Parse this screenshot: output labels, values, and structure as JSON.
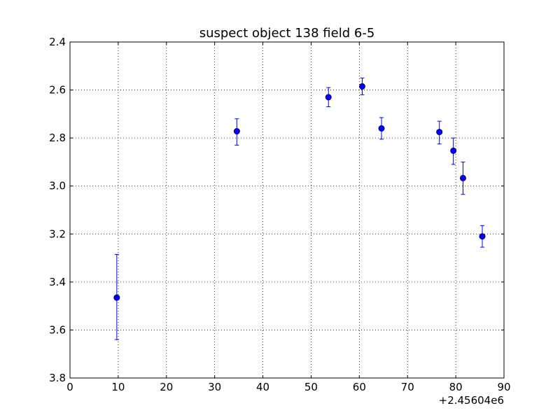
{
  "chart_data": {
    "type": "scatter",
    "title": "suspect object 138 field 6-5",
    "xlabel": "",
    "ylabel": "",
    "x_offset_label": "+2.45604e6",
    "xlim": [
      0,
      90
    ],
    "ylim": [
      2.4,
      3.8
    ],
    "y_inverted": true,
    "grid": true,
    "x_ticks": [
      0,
      10,
      20,
      30,
      40,
      50,
      60,
      70,
      80,
      90
    ],
    "x_tick_labels": [
      "0",
      "10",
      "20",
      "30",
      "40",
      "50",
      "60",
      "70",
      "80",
      "90"
    ],
    "y_ticks": [
      2.4,
      2.6,
      2.8,
      3.0,
      3.2,
      3.4,
      3.6,
      3.8
    ],
    "y_tick_labels": [
      "2.4",
      "2.6",
      "2.8",
      "3.0",
      "3.2",
      "3.4",
      "3.6",
      "3.8"
    ],
    "marker_color": "#0000ff",
    "errorbar_color": "#0000ff",
    "points": [
      {
        "x": 9.7,
        "y": 3.465,
        "err_low": 3.285,
        "err_high": 3.64
      },
      {
        "x": 34.6,
        "y": 2.772,
        "err_low": 2.72,
        "err_high": 2.83
      },
      {
        "x": 53.6,
        "y": 2.63,
        "err_low": 2.59,
        "err_high": 2.67
      },
      {
        "x": 60.6,
        "y": 2.585,
        "err_low": 2.55,
        "err_high": 2.62
      },
      {
        "x": 64.6,
        "y": 2.76,
        "err_low": 2.715,
        "err_high": 2.805
      },
      {
        "x": 76.6,
        "y": 2.775,
        "err_low": 2.73,
        "err_high": 2.825
      },
      {
        "x": 79.5,
        "y": 2.853,
        "err_low": 2.8,
        "err_high": 2.91
      },
      {
        "x": 81.5,
        "y": 2.967,
        "err_low": 2.9,
        "err_high": 3.035
      },
      {
        "x": 85.5,
        "y": 3.21,
        "err_low": 3.165,
        "err_high": 3.255
      }
    ]
  }
}
